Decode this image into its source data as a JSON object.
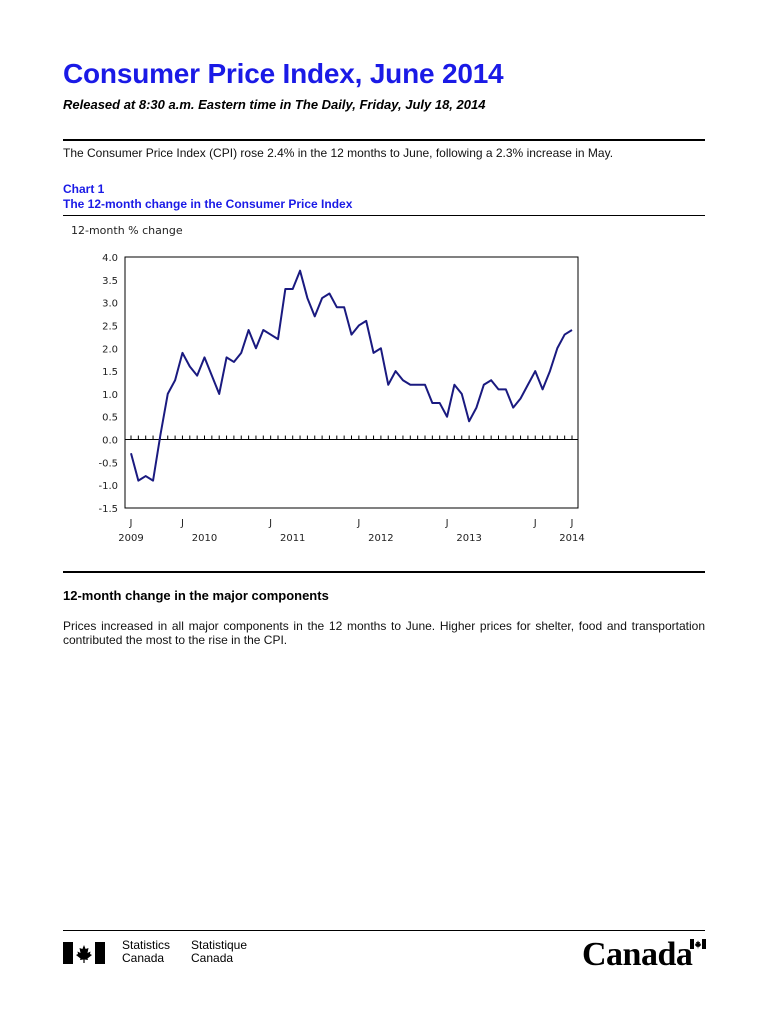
{
  "header": {
    "title": "Consumer Price Index, June 2014",
    "subtitle": "Released at 8:30 a.m. Eastern time in The Daily, Friday, July 18, 2014"
  },
  "intro": "The Consumer Price Index (CPI) rose 2.4% in the 12 months to June, following a 2.3% increase in May.",
  "chart": {
    "number": "Chart 1",
    "title": "The 12-month change in the Consumer Price Index"
  },
  "chart_data": {
    "type": "line",
    "title": "The 12-month change in the Consumer Price Index",
    "ylabel": "12-month % change",
    "xlabel": "",
    "ylim": [
      -1.5,
      4.0
    ],
    "yticks": [
      "4.0",
      "3.5",
      "3.0",
      "2.5",
      "2.0",
      "1.5",
      "1.0",
      "0.5",
      "0.0",
      "-0.5",
      "-1.0",
      "-1.5"
    ],
    "x_month_labels": [
      "J",
      "J",
      "J",
      "J",
      "J",
      "J",
      "J"
    ],
    "x_year_labels": [
      "2009",
      "2010",
      "2011",
      "2012",
      "2013",
      "2014"
    ],
    "x_start": "2009-06",
    "x_end": "2014-06",
    "grid": false,
    "series": [
      {
        "color": "#1a1a80",
        "values": [
          -0.3,
          -0.9,
          -0.8,
          -0.9,
          0.1,
          1.0,
          1.3,
          1.9,
          1.6,
          1.4,
          1.8,
          1.4,
          1.0,
          1.8,
          1.7,
          1.9,
          2.4,
          2.0,
          2.4,
          2.3,
          2.2,
          3.3,
          3.3,
          3.7,
          3.1,
          2.7,
          3.1,
          3.2,
          2.9,
          2.9,
          2.3,
          2.5,
          2.6,
          1.9,
          2.0,
          1.2,
          1.5,
          1.3,
          1.2,
          1.2,
          1.2,
          0.8,
          0.8,
          0.5,
          1.2,
          1.0,
          0.4,
          0.7,
          1.2,
          1.3,
          1.1,
          1.1,
          0.7,
          0.9,
          1.2,
          1.5,
          1.1,
          1.5,
          2.0,
          2.3,
          2.4
        ]
      }
    ]
  },
  "section": {
    "heading": "12-month change in the major components",
    "paragraph": "Prices increased in all major components in the 12 months to June. Higher prices for shelter, food and transportation contributed the most to the rise in the CPI."
  },
  "footer": {
    "statistics": "Statistics",
    "canada_en": "Canada",
    "statistique": "Statistique",
    "canada_fr": "Canada",
    "wordmark": "Canada"
  }
}
